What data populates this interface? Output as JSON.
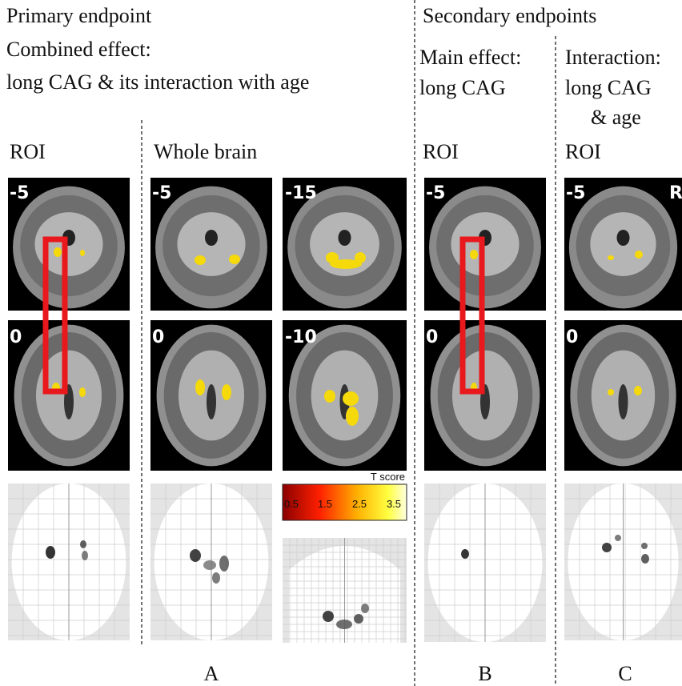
{
  "header": {
    "primary": {
      "title": "Primary endpoint",
      "lines": [
        "Combined effect:",
        "long CAG & its interaction with age"
      ]
    },
    "secondary": {
      "title": "Secondary endpoints",
      "main_effect": [
        "Main effect:",
        "long CAG"
      ],
      "interaction": [
        "Interaction:",
        "long CAG",
        "& age"
      ]
    }
  },
  "column_labels": [
    "ROI",
    "Whole brain",
    "ROI",
    "ROI"
  ],
  "slice_labels": [
    "-5",
    "0",
    "-5",
    "-15",
    "0",
    "-10",
    "-5",
    "0",
    "-5",
    "0"
  ],
  "orientation_label": "R",
  "colorbar": {
    "title": "T score",
    "ticks": [
      "0.5",
      "1.5",
      "2.5",
      "3.5"
    ]
  },
  "panel_letters": [
    "A",
    "B",
    "C"
  ]
}
